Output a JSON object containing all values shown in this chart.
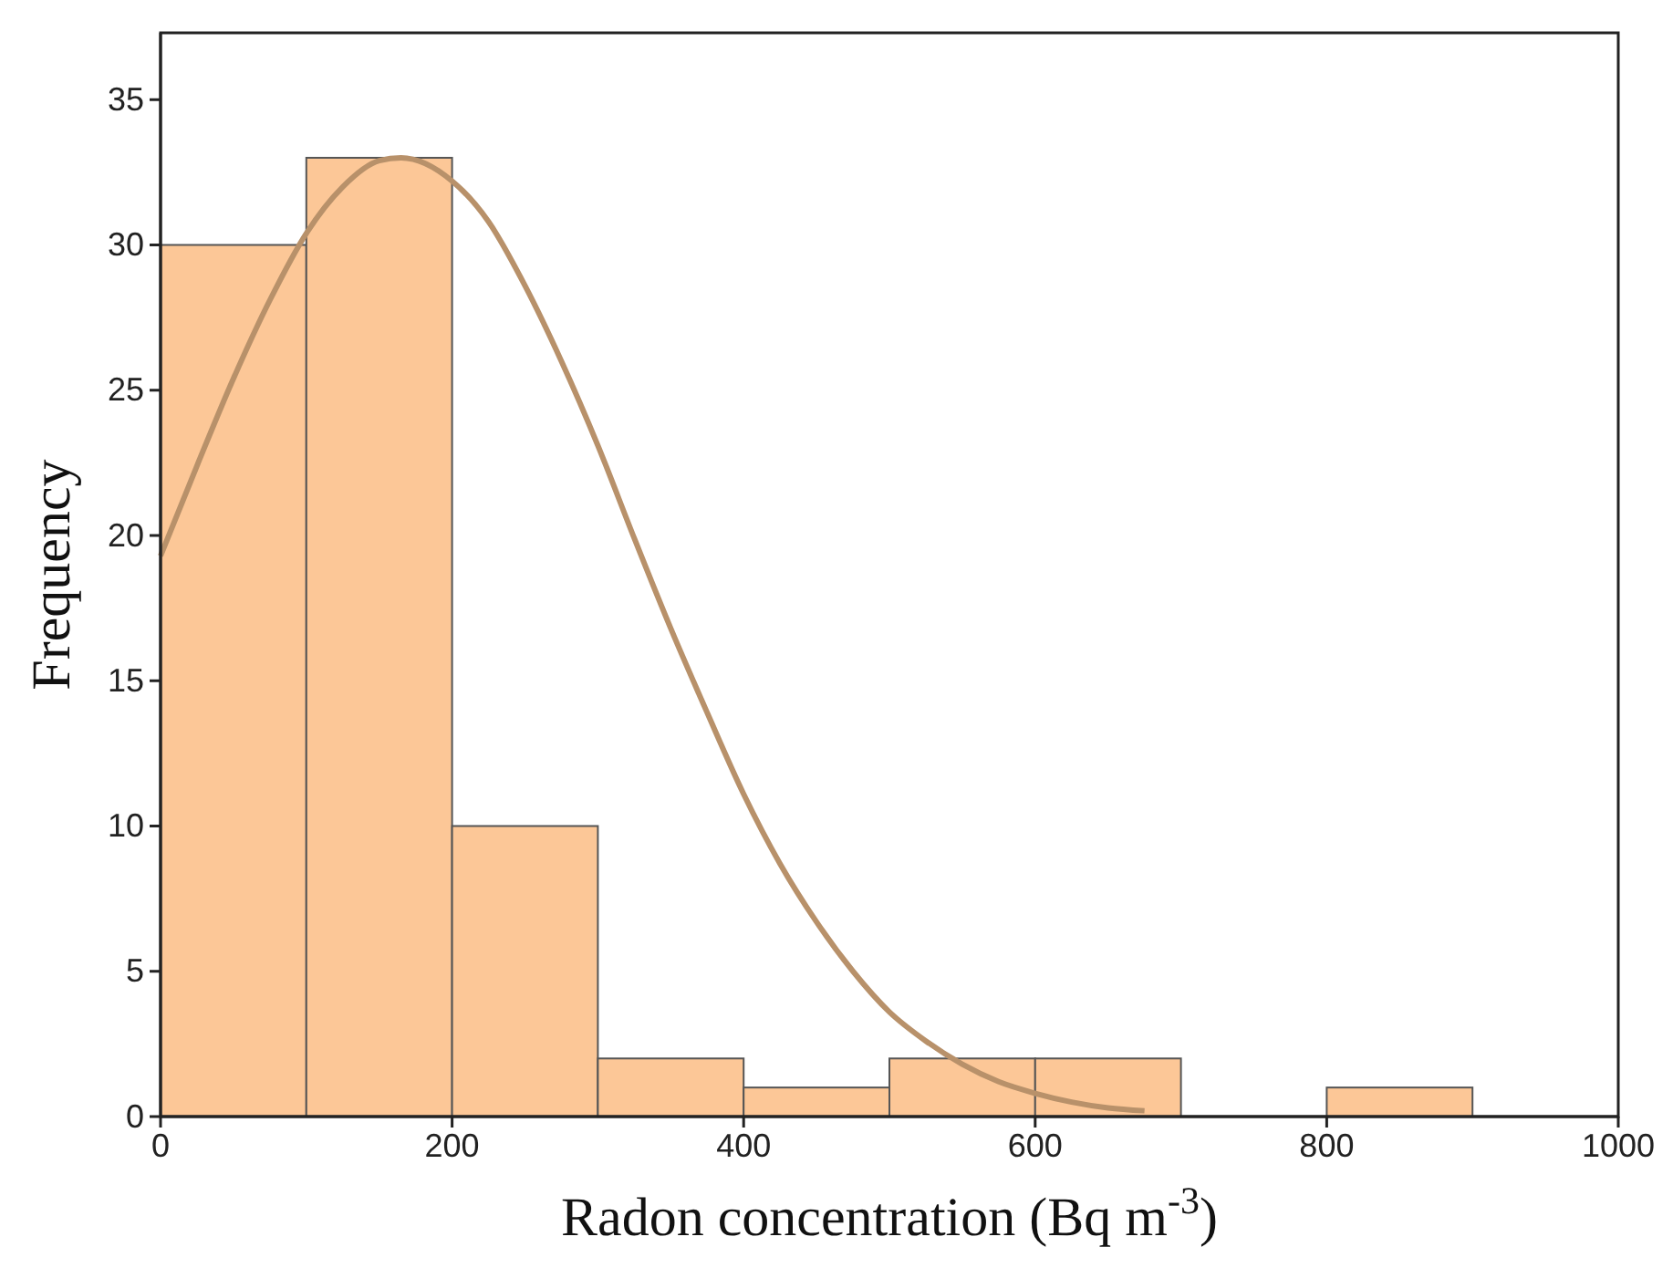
{
  "chart_data": {
    "type": "histogram",
    "xlabel": "Radon concentration (Bq m$^{-3}$)",
    "ylabel": "Frequency",
    "bins": [
      0,
      100,
      200,
      300,
      400,
      500,
      600,
      700,
      800,
      900
    ],
    "values": [
      30,
      33,
      10,
      2,
      1,
      2,
      2,
      0,
      1
    ],
    "color": "#fcc797",
    "series": [
      {
        "type": "line",
        "color": "#b8916a",
        "x": [
          0,
          25,
          50,
          75,
          100,
          125,
          150,
          165,
          200,
          225,
          250,
          275,
          300,
          325,
          350,
          375,
          400,
          425,
          450,
          475,
          500,
          525,
          550,
          575,
          600,
          625,
          650,
          675
        ],
        "values": [
          19.3,
          22.4,
          25.4,
          28.1,
          30.4,
          32.0,
          32.9,
          33,
          32.2,
          30.8,
          28.6,
          26.0,
          23.1,
          19.9,
          16.8,
          13.9,
          11.1,
          8.7,
          6.7,
          5.0,
          3.6,
          2.6,
          1.8,
          1.2,
          0.8,
          0.5,
          0.3,
          0.2
        ]
      }
    ],
    "xlim": [
      0,
      1000
    ],
    "xticks": [
      0,
      200,
      400,
      600,
      800,
      1000
    ],
    "ylim": [
      0,
      37.3
    ],
    "yticks": [
      0,
      5,
      10,
      15,
      20,
      25,
      30,
      35
    ],
    "grid": false,
    "marker": "none",
    "line_style": "solid"
  }
}
